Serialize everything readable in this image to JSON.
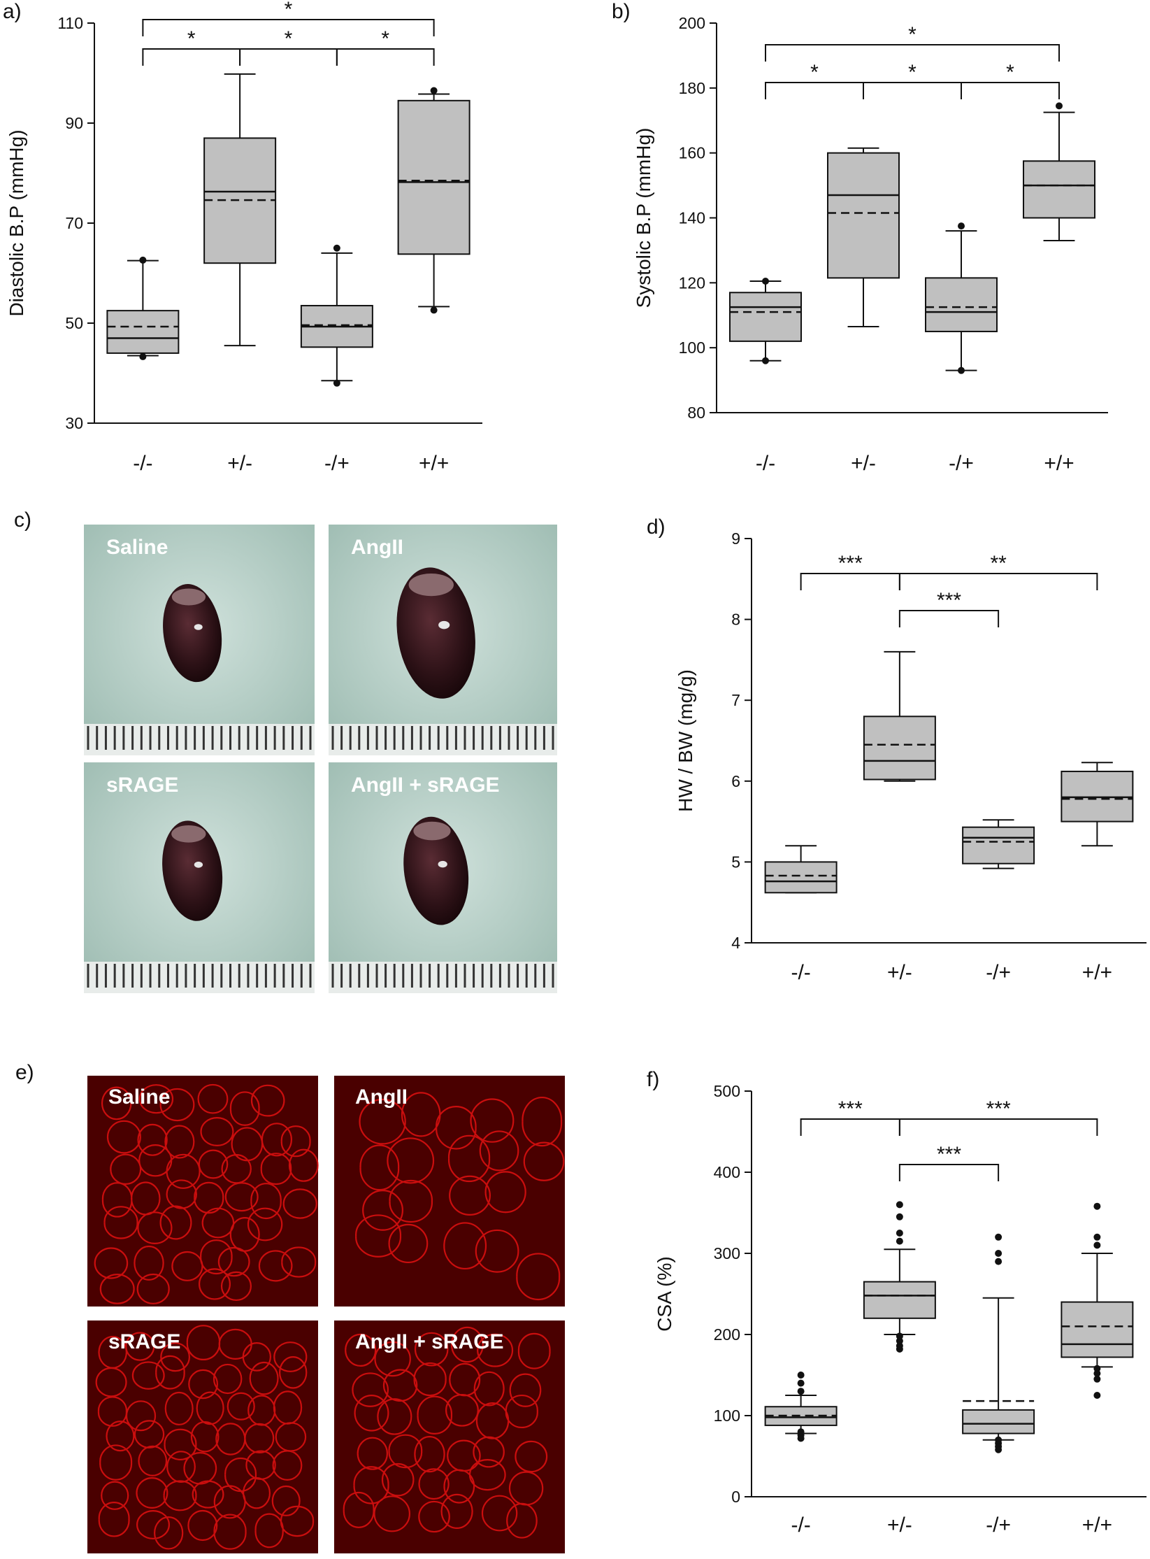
{
  "panels": [
    {
      "letter": "a)",
      "chart_data": {
        "type": "box",
        "ylabel": "Diastolic B.P (mmHg)",
        "ylim": [
          30,
          110
        ],
        "yticks": [
          30,
          50,
          70,
          90,
          110
        ],
        "categories": [
          "-/-",
          "+/-",
          "-/+",
          "+/+"
        ],
        "boxes": [
          {
            "whisker_low": 43.5,
            "q1": 44,
            "median": 47,
            "mean": 49.3,
            "q3": 52.5,
            "whisker_high": 62.5,
            "outliers": [
              43.3,
              62.6
            ]
          },
          {
            "whisker_low": 45.5,
            "q1": 62,
            "median": 76.3,
            "mean": 74.6,
            "q3": 87,
            "whisker_high": 99.8,
            "outliers": []
          },
          {
            "whisker_low": 38.5,
            "q1": 45.2,
            "median": 49.3,
            "mean": 49.6,
            "q3": 53.5,
            "whisker_high": 64,
            "outliers": [
              38,
              65
            ]
          },
          {
            "whisker_low": 53.3,
            "q1": 63.8,
            "median": 78.2,
            "mean": 78.5,
            "q3": 94.5,
            "whisker_high": 95.8,
            "outliers": [
              52.6,
              96.5
            ]
          }
        ],
        "comparisons": [
          {
            "from": 0,
            "to": 1,
            "label": "*",
            "level": 1
          },
          {
            "from": 1,
            "to": 2,
            "label": "*",
            "level": 1
          },
          {
            "from": 2,
            "to": 3,
            "label": "*",
            "level": 1
          },
          {
            "from": 0,
            "to": 3,
            "label": "*",
            "level": 2
          }
        ]
      }
    },
    {
      "letter": "b)",
      "chart_data": {
        "type": "box",
        "ylabel": "Systolic B.P (mmHg)",
        "ylim": [
          80,
          200
        ],
        "yticks": [
          80,
          100,
          120,
          140,
          160,
          180,
          200
        ],
        "categories": [
          "-/-",
          "+/-",
          "-/+",
          "+/+"
        ],
        "boxes": [
          {
            "whisker_low": 96,
            "q1": 102,
            "median": 112.5,
            "mean": 111,
            "q3": 117,
            "whisker_high": 120.5,
            "outliers": [
              96,
              120.5
            ]
          },
          {
            "whisker_low": 106.5,
            "q1": 121.5,
            "median": 147,
            "mean": 141.5,
            "q3": 160,
            "whisker_high": 161.5,
            "outliers": []
          },
          {
            "whisker_low": 93,
            "q1": 105,
            "median": 111,
            "mean": 112.5,
            "q3": 121.5,
            "whisker_high": 136,
            "outliers": [
              93,
              137.5
            ]
          },
          {
            "whisker_low": 133,
            "q1": 140,
            "median": 150,
            "mean": 150,
            "q3": 157.5,
            "whisker_high": 172.5,
            "outliers": [
              174.5
            ]
          }
        ],
        "comparisons": [
          {
            "from": 0,
            "to": 1,
            "label": "*",
            "level": 1
          },
          {
            "from": 1,
            "to": 2,
            "label": "*",
            "level": 1
          },
          {
            "from": 2,
            "to": 3,
            "label": "*",
            "level": 1
          },
          {
            "from": 0,
            "to": 3,
            "label": "*",
            "level": 2
          }
        ]
      }
    },
    {
      "letter": "c)",
      "image_grid": {
        "type": "photo",
        "tiles": [
          {
            "label": "Saline",
            "size": 0.86
          },
          {
            "label": "AngII",
            "size": 1.15
          },
          {
            "label": "sRAGE",
            "size": 0.88
          },
          {
            "label": "AngII + sRAGE",
            "size": 0.95
          }
        ]
      }
    },
    {
      "letter": "d)",
      "chart_data": {
        "type": "box",
        "ylabel": "HW / BW (mg/g)",
        "ylim": [
          4,
          9
        ],
        "yticks": [
          4,
          5,
          6,
          7,
          8,
          9
        ],
        "categories": [
          "-/-",
          "+/-",
          "-/+",
          "+/+"
        ],
        "boxes": [
          {
            "whisker_low": 4.62,
            "q1": 4.62,
            "median": 4.76,
            "mean": 4.83,
            "q3": 5.0,
            "whisker_high": 5.2,
            "outliers": []
          },
          {
            "whisker_low": 6.0,
            "q1": 6.02,
            "median": 6.25,
            "mean": 6.45,
            "q3": 6.8,
            "whisker_high": 7.6,
            "outliers": []
          },
          {
            "whisker_low": 4.92,
            "q1": 4.98,
            "median": 5.3,
            "mean": 5.25,
            "q3": 5.43,
            "whisker_high": 5.52,
            "outliers": []
          },
          {
            "whisker_low": 5.2,
            "q1": 5.5,
            "median": 5.8,
            "mean": 5.78,
            "q3": 6.12,
            "whisker_high": 6.23,
            "outliers": []
          }
        ],
        "comparisons": [
          {
            "from": 0,
            "to": 1,
            "label": "***",
            "level": 2
          },
          {
            "from": 1,
            "to": 3,
            "label": "**",
            "level": 2
          },
          {
            "from": 1,
            "to": 2,
            "label": "***",
            "level": 1
          }
        ]
      }
    },
    {
      "letter": "e)",
      "image_grid": {
        "type": "fluorescence",
        "tiles": [
          {
            "label": "Saline",
            "cell": 44
          },
          {
            "label": "AngII",
            "cell": 60
          },
          {
            "label": "sRAGE",
            "cell": 42
          },
          {
            "label": "AngII + sRAGE",
            "cell": 46
          }
        ]
      }
    },
    {
      "letter": "f)",
      "chart_data": {
        "type": "box",
        "ylabel": "CSA (%)",
        "ylim": [
          0,
          500
        ],
        "yticks": [
          0,
          100,
          200,
          300,
          400,
          500
        ],
        "categories": [
          "-/-",
          "+/-",
          "-/+",
          "+/+"
        ],
        "boxes": [
          {
            "whisker_low": 78,
            "q1": 88,
            "median": 98,
            "mean": 100,
            "q3": 111,
            "whisker_high": 125,
            "outliers": [
              72,
              76,
              80,
              130,
              140,
              150
            ]
          },
          {
            "whisker_low": 200,
            "q1": 220,
            "median": 248,
            "mean": 248,
            "q3": 265,
            "whisker_high": 305,
            "outliers": [
              182,
              186,
              192,
              198,
              315,
              325,
              345,
              360
            ]
          },
          {
            "whisker_low": 70,
            "q1": 78,
            "median": 90,
            "mean": 118,
            "q3": 107,
            "whisker_high": 245,
            "outliers": [
              58,
              62,
              66,
              70,
              290,
              300,
              320
            ]
          },
          {
            "whisker_low": 160,
            "q1": 172,
            "median": 188,
            "mean": 210,
            "q3": 240,
            "whisker_high": 300,
            "outliers": [
              125,
              145,
              152,
              158,
              310,
              320,
              358
            ]
          }
        ],
        "comparisons": [
          {
            "from": 0,
            "to": 1,
            "label": "***",
            "level": 2
          },
          {
            "from": 1,
            "to": 3,
            "label": "***",
            "level": 2
          },
          {
            "from": 1,
            "to": 2,
            "label": "***",
            "level": 1
          }
        ]
      }
    }
  ]
}
